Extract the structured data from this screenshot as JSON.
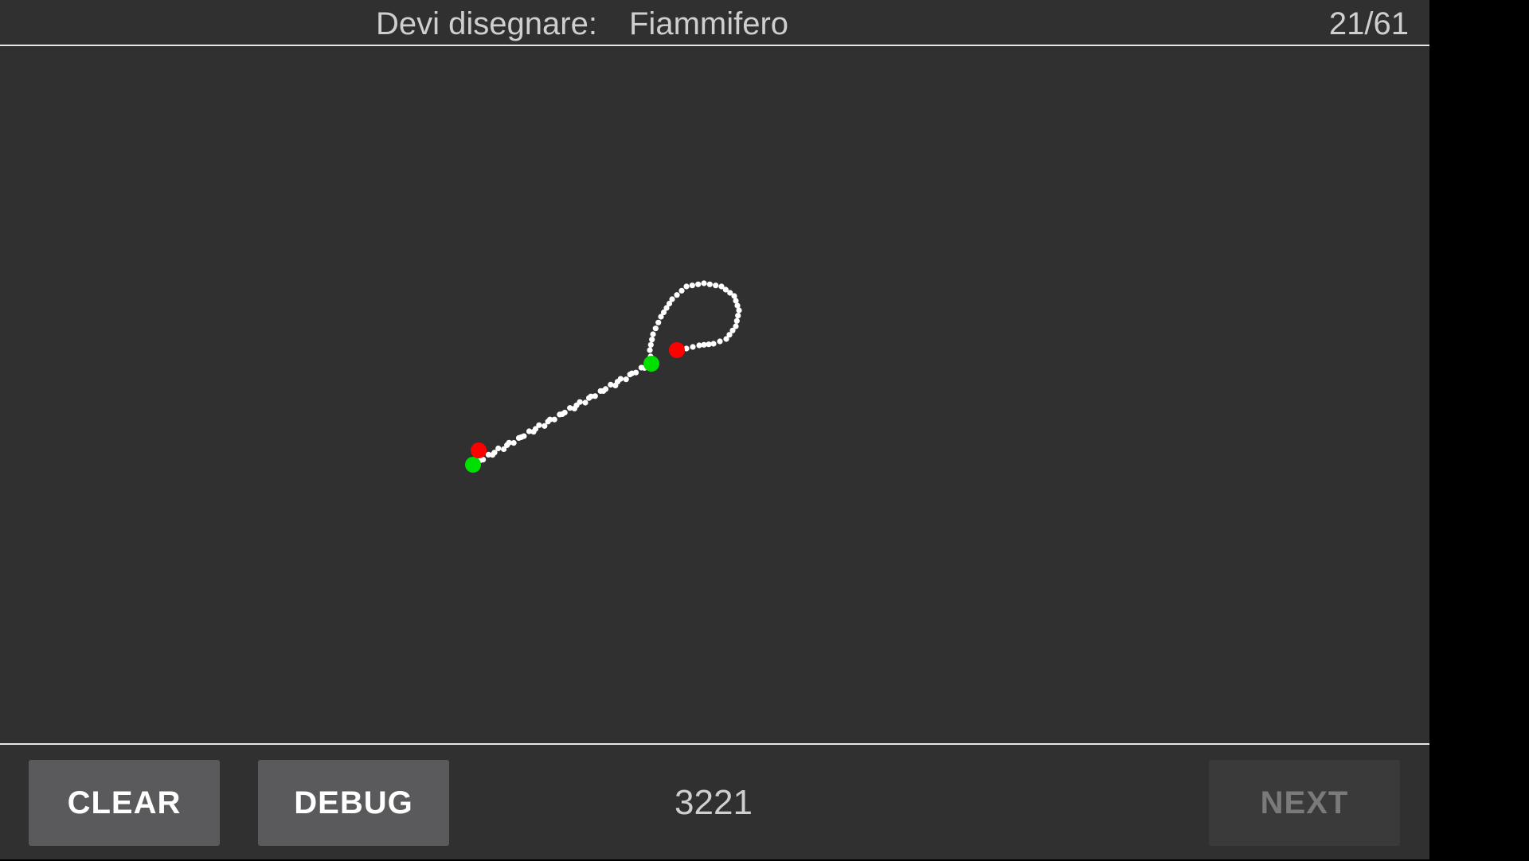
{
  "header": {
    "prompt_label": "Devi disegnare:",
    "target_word": "Fiammifero",
    "progress": "21/61"
  },
  "footer": {
    "clear_label": "CLEAR",
    "debug_label": "DEBUG",
    "score": "3221",
    "next_label": "NEXT",
    "next_enabled": false
  },
  "colors": {
    "background": "#303030",
    "stroke_dot": "#ffffff",
    "stroke_start": "#00e000",
    "stroke_end": "#ff0000",
    "button_bg": "#5a5a5c",
    "button_disabled_bg": "#3a3a3a"
  }
}
